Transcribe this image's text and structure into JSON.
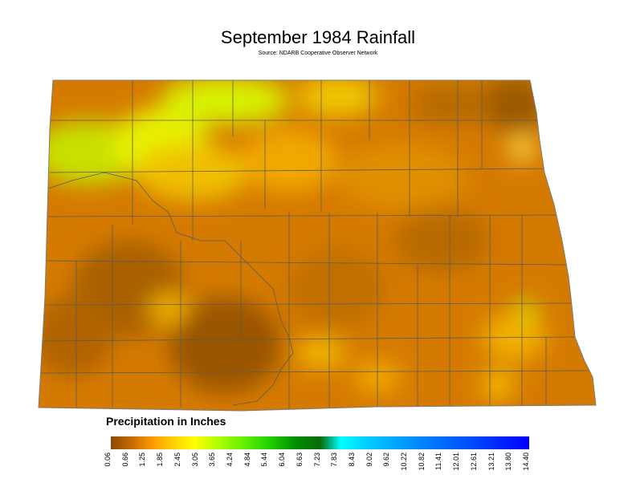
{
  "title": "September 1984 Rainfall",
  "subtitle": "Source: NDARB Cooperative Observer Network",
  "legend": {
    "title": "Precipitation in Inches",
    "ticks": [
      "0.06",
      "0.66",
      "1.25",
      "1.85",
      "2.45",
      "3.05",
      "3.65",
      "4.24",
      "4.84",
      "5.44",
      "6.04",
      "6.63",
      "7.23",
      "7.83",
      "8.43",
      "9.02",
      "9.62",
      "10.22",
      "10.82",
      "11.41",
      "12.01",
      "12.61",
      "13.21",
      "13.80",
      "14.40"
    ]
  },
  "colors": {
    "dry": "#8a4a00",
    "low": "#e08a00",
    "mid": "#ffd000",
    "high": "#c8ff00",
    "county_lines": "#5a5a5a"
  }
}
